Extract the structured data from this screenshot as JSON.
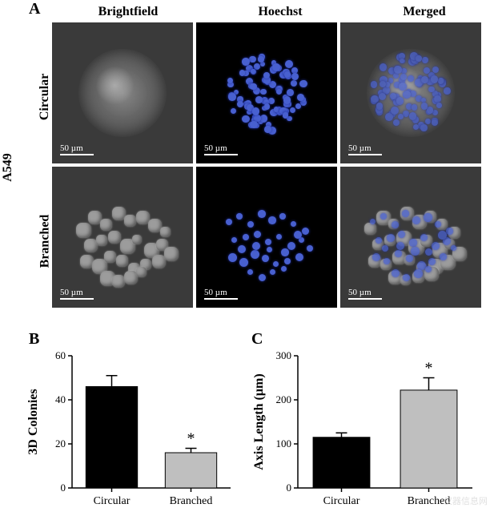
{
  "panelA": {
    "label": "A",
    "cell_line": "A549",
    "columns": [
      "Brightfield",
      "Hoechst",
      "Merged"
    ],
    "rows": [
      "Circular",
      "Branched"
    ],
    "scalebar_text": "50 µm",
    "colors": {
      "hoechst_blue": "#4860d0",
      "hoechst_blue_dark": "#2030a0",
      "bf_gray_bg": "#3a3a3a",
      "dark_bg": "#000000",
      "scalebar": "#ffffff"
    }
  },
  "panelB": {
    "label": "B",
    "type": "bar",
    "ylabel": "3D Colonies",
    "categories": [
      "Circular",
      "Branched"
    ],
    "values": [
      46,
      16
    ],
    "errors": [
      5,
      2
    ],
    "bar_colors": [
      "#000000",
      "#bfbfbf"
    ],
    "ylim": [
      0,
      60
    ],
    "ytick_step": 20,
    "yticks": [
      0,
      20,
      40,
      60
    ],
    "significance": {
      "index": 1,
      "symbol": "*"
    },
    "axis_color": "#000000",
    "label_fontsize": 16,
    "tick_fontsize": 13,
    "bar_width": 0.65
  },
  "panelC": {
    "label": "C",
    "type": "bar",
    "ylabel": "Axis Length (µm)",
    "categories": [
      "Circular",
      "Branched"
    ],
    "values": [
      115,
      222
    ],
    "errors": [
      10,
      28
    ],
    "bar_colors": [
      "#000000",
      "#bfbfbf"
    ],
    "ylim": [
      0,
      300
    ],
    "ytick_step": 100,
    "yticks": [
      0,
      100,
      200,
      300
    ],
    "significance": {
      "index": 1,
      "symbol": "*"
    },
    "axis_color": "#000000",
    "label_fontsize": 16,
    "tick_fontsize": 13,
    "bar_width": 0.65
  },
  "watermark": "仪器信息网"
}
